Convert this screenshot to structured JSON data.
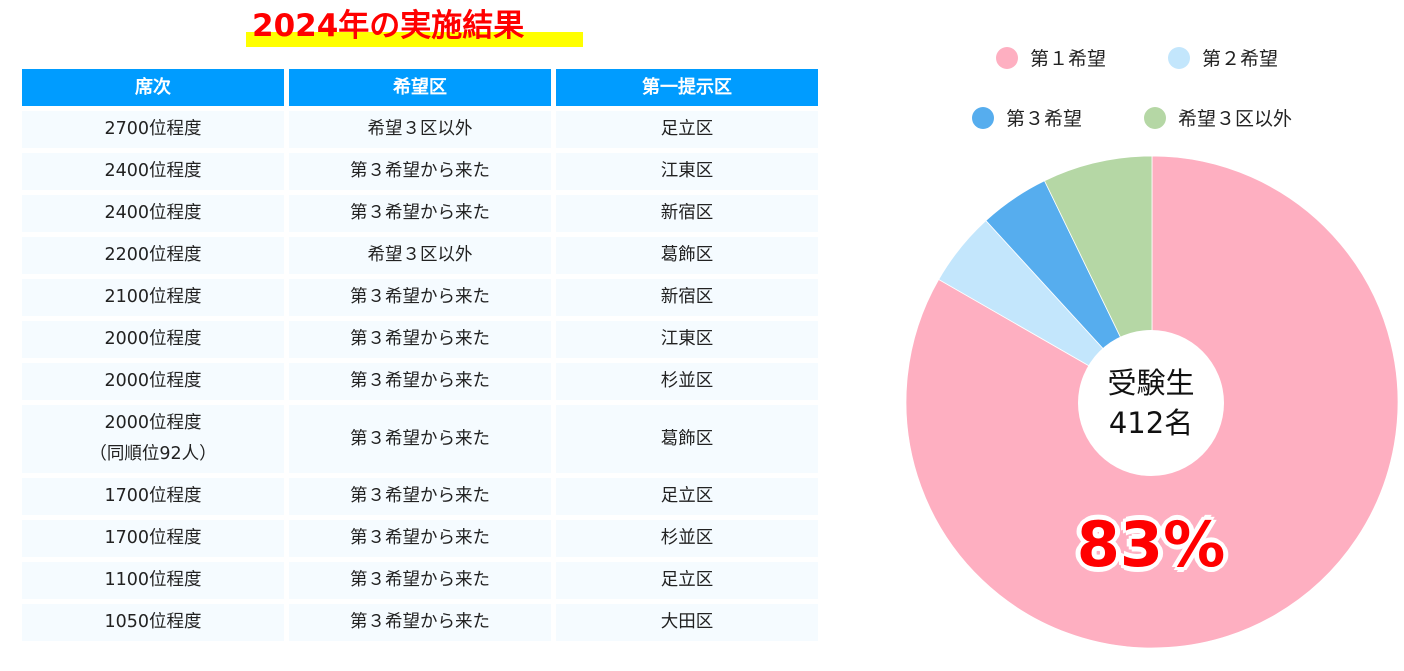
{
  "title": "2024年の実施結果",
  "table": {
    "headers": [
      "席次",
      "希望区",
      "第一提示区"
    ],
    "rows": [
      {
        "rank": "2700位程度",
        "rank2": "",
        "wish": "希望３区以外",
        "district": "足立区"
      },
      {
        "rank": "2400位程度",
        "rank2": "",
        "wish": "第３希望から来た",
        "district": "江東区"
      },
      {
        "rank": "2400位程度",
        "rank2": "",
        "wish": "第３希望から来た",
        "district": "新宿区"
      },
      {
        "rank": "2200位程度",
        "rank2": "",
        "wish": "希望３区以外",
        "district": "葛飾区"
      },
      {
        "rank": "2100位程度",
        "rank2": "",
        "wish": "第３希望から来た",
        "district": "新宿区"
      },
      {
        "rank": "2000位程度",
        "rank2": "",
        "wish": "第３希望から来た",
        "district": "江東区"
      },
      {
        "rank": "2000位程度",
        "rank2": "",
        "wish": "第３希望から来た",
        "district": "杉並区"
      },
      {
        "rank": "2000位程度",
        "rank2": "（同順位92人）",
        "wish": "第３希望から来た",
        "district": "葛飾区"
      },
      {
        "rank": "1700位程度",
        "rank2": "",
        "wish": "第３希望から来た",
        "district": "足立区"
      },
      {
        "rank": "1700位程度",
        "rank2": "",
        "wish": "第３希望から来た",
        "district": "杉並区"
      },
      {
        "rank": "1100位程度",
        "rank2": "",
        "wish": "第３希望から来た",
        "district": "足立区"
      },
      {
        "rank": "1050位程度",
        "rank2": "",
        "wish": "第３希望から来た",
        "district": "大田区"
      }
    ]
  },
  "chart_data": {
    "type": "pie",
    "title": "",
    "center_label": [
      "受験生",
      "412名"
    ],
    "highlight_label": "83%",
    "categories": [
      "第１希望",
      "第２希望",
      "第３希望",
      "希望３区以外"
    ],
    "values": [
      83.3,
      4.9,
      4.6,
      7.2
    ],
    "colors": [
      "#feafc1",
      "#c3e6fc",
      "#56adee",
      "#b5d7a5"
    ],
    "legend_position": "top",
    "start_angle_deg": 0,
    "direction": "clockwise"
  },
  "colors": {
    "title_text": "#ff0000",
    "title_highlight": "#ffff00",
    "table_header_bg": "#009cff",
    "table_row_bg": "#f5fbff"
  }
}
